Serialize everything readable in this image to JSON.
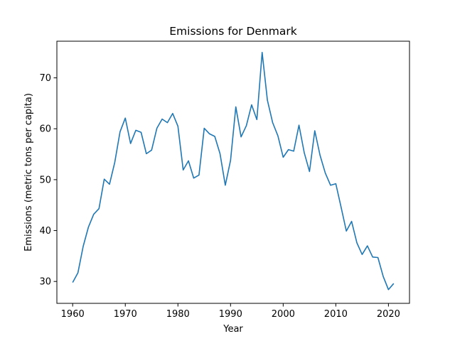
{
  "chart_data": {
    "type": "line",
    "title": "Emissions for Denmark",
    "xlabel": "Year",
    "ylabel": "Emissions (metric tons per capita)",
    "xlim": [
      1957,
      2024
    ],
    "ylim": [
      25.7,
      77.2
    ],
    "x_ticks": [
      1960,
      1970,
      1980,
      1990,
      2000,
      2010,
      2020
    ],
    "y_ticks": [
      30,
      40,
      50,
      60,
      70
    ],
    "grid": false,
    "legend": "none",
    "series": [
      {
        "color": "#1f77b4",
        "x": [
          1960,
          1961,
          1962,
          1963,
          1964,
          1965,
          1966,
          1967,
          1968,
          1969,
          1970,
          1971,
          1972,
          1973,
          1974,
          1975,
          1976,
          1977,
          1978,
          1979,
          1980,
          1981,
          1982,
          1983,
          1984,
          1985,
          1986,
          1987,
          1988,
          1989,
          1990,
          1991,
          1992,
          1993,
          1994,
          1995,
          1996,
          1997,
          1998,
          1999,
          2000,
          2001,
          2002,
          2003,
          2004,
          2005,
          2006,
          2007,
          2008,
          2009,
          2010,
          2011,
          2012,
          2013,
          2014,
          2015,
          2016,
          2017,
          2018,
          2019,
          2020,
          2021
        ],
        "y": [
          29.8,
          31.7,
          36.9,
          40.7,
          43.2,
          44.3,
          50.1,
          49.1,
          53.4,
          59.4,
          62.1,
          57.1,
          59.7,
          59.3,
          55.1,
          55.8,
          60.1,
          61.9,
          61.2,
          63.0,
          60.5,
          51.9,
          53.7,
          50.3,
          50.9,
          60.1,
          59.0,
          58.5,
          55.1,
          48.9,
          53.8,
          64.3,
          58.4,
          60.6,
          64.7,
          61.8,
          75.0,
          65.6,
          61.2,
          58.6,
          54.4,
          55.9,
          55.6,
          60.7,
          55.3,
          51.6,
          59.6,
          54.8,
          51.3,
          48.9,
          49.2,
          44.6,
          39.9,
          41.8,
          37.6,
          35.3,
          37.0,
          34.8,
          34.7,
          31.0,
          28.4,
          29.6
        ]
      }
    ]
  }
}
